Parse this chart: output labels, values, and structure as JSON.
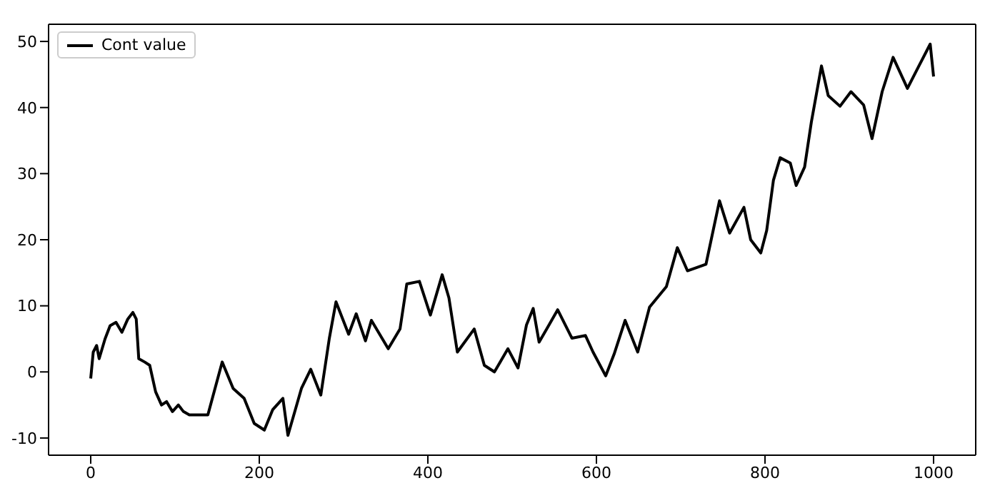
{
  "chart_data": {
    "type": "line",
    "legend": "top left",
    "grid": false,
    "marker": "none",
    "line_style": "solid",
    "xlim": [
      -50,
      1050
    ],
    "xticks": [
      0,
      200,
      400,
      600,
      800,
      1000
    ],
    "ylim": [
      -12.6,
      52.6
    ],
    "yticks": [
      -10,
      0,
      10,
      20,
      30,
      40,
      50
    ],
    "series": [
      {
        "name": "Cont value",
        "color": "#000000",
        "x": [
          0,
          3,
          7,
          10,
          17,
          23,
          30,
          37,
          44,
          50,
          54,
          57,
          64,
          70,
          77,
          84,
          90,
          97,
          104,
          110,
          117,
          139,
          156,
          169,
          182,
          194,
          206,
          216,
          228,
          234,
          250,
          261,
          273,
          283,
          291,
          306,
          315,
          326,
          333,
          353,
          367,
          375,
          390,
          403,
          417,
          425,
          435,
          455,
          467,
          479,
          495,
          507,
          517,
          525,
          532,
          554,
          571,
          587,
          596,
          611,
          621,
          634,
          649,
          663,
          683,
          696,
          708,
          730,
          746,
          758,
          775,
          783,
          795,
          802,
          810,
          818,
          830,
          837,
          847,
          855,
          867,
          875,
          889,
          902,
          917,
          927,
          939,
          952,
          969,
          981,
          996,
          1000
        ],
        "values": [
          -1,
          3,
          4,
          2,
          5,
          7,
          7.5,
          6,
          8,
          9,
          8,
          2,
          1.5,
          1,
          -3,
          -5,
          -4.5,
          -6,
          -5,
          -6,
          -6.5,
          -6.5,
          1.5,
          -2.5,
          -4,
          -7.8,
          -8.8,
          -5.7,
          -4,
          -9.6,
          -2.5,
          0.4,
          -3.5,
          5,
          10.6,
          5.7,
          8.8,
          4.7,
          7.8,
          3.5,
          6.5,
          13.3,
          13.7,
          8.6,
          14.7,
          11.2,
          3,
          6.5,
          1,
          0,
          3.5,
          0.6,
          7.1,
          9.6,
          4.5,
          9.4,
          5.1,
          5.5,
          3,
          -0.6,
          2.7,
          7.8,
          3,
          9.8,
          12.9,
          18.8,
          15.3,
          16.3,
          25.9,
          21,
          24.9,
          20,
          18,
          21.4,
          29,
          32.4,
          31.6,
          28.2,
          31,
          37.8,
          46.3,
          41.8,
          40.2,
          42.4,
          40.4,
          35.3,
          42.4,
          47.6,
          42.9,
          45.9,
          49.6,
          44.7
        ]
      }
    ]
  }
}
